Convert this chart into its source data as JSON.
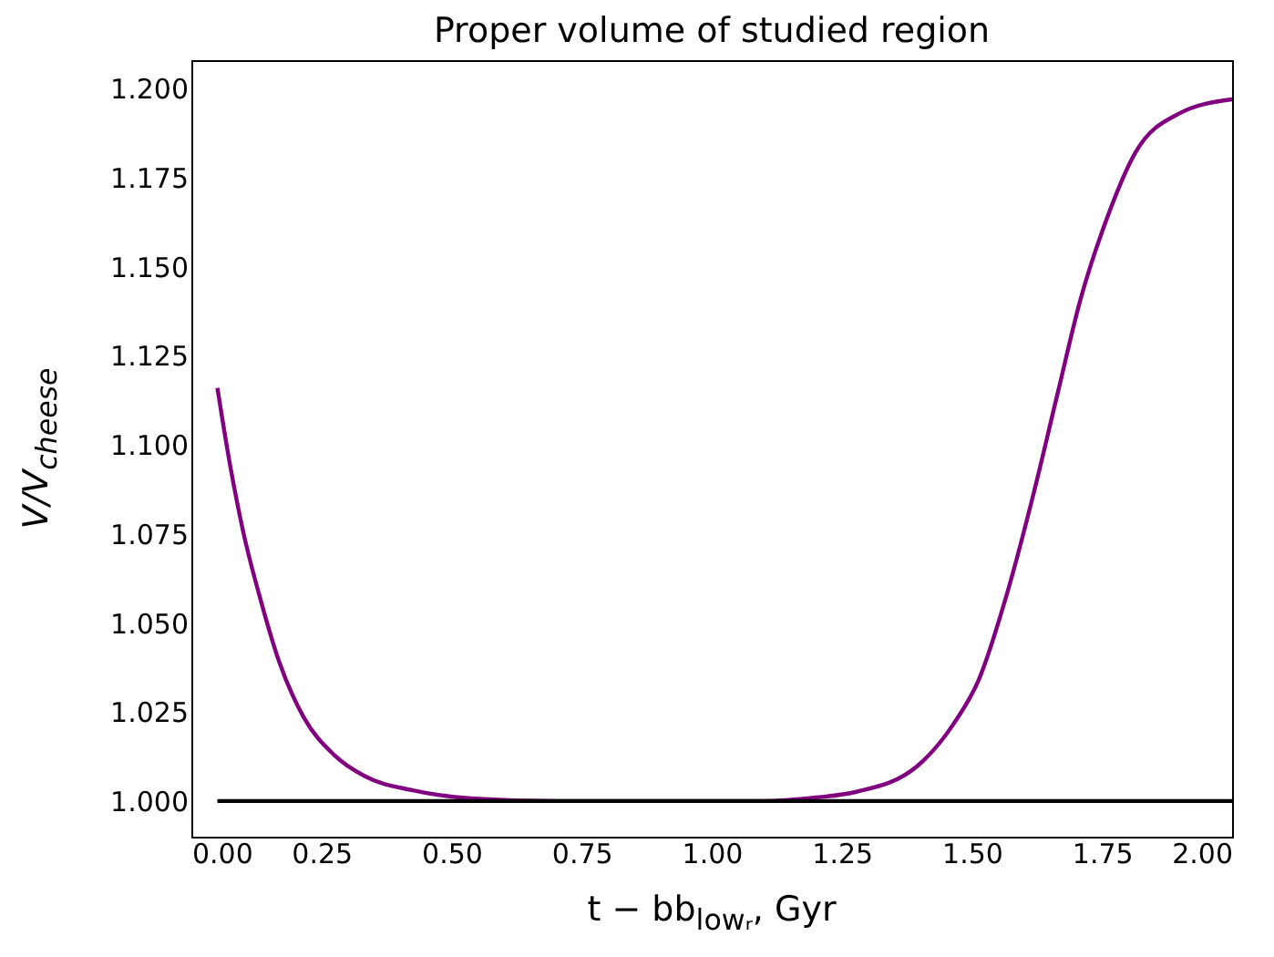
{
  "chart_data": {
    "type": "line",
    "title": "Proper volume of studied region",
    "xlabel": "t − bb$_{lowᵣ}$, Gyr",
    "ylabel": "V/V$_{cheese}$",
    "xlim": [
      0,
      2
    ],
    "ylim": [
      0.99,
      1.208
    ],
    "xticks": [
      {
        "value": 0,
        "label": "0.00"
      },
      {
        "value": 0.25,
        "label": "0.25"
      },
      {
        "value": 0.5,
        "label": "0.50"
      },
      {
        "value": 0.75,
        "label": "0.75"
      },
      {
        "value": 1,
        "label": "1.00"
      },
      {
        "value": 1.25,
        "label": "1.25"
      },
      {
        "value": 1.5,
        "label": "1.50"
      },
      {
        "value": 1.75,
        "label": "1.75"
      },
      {
        "value": 2,
        "label": "2.00"
      }
    ],
    "yticks": [
      {
        "value": 1,
        "label": "1.000"
      },
      {
        "value": 1.025,
        "label": "1.025"
      },
      {
        "value": 1.05,
        "label": "1.050"
      },
      {
        "value": 1.075,
        "label": "1.075"
      },
      {
        "value": 1.1,
        "label": "1.100"
      },
      {
        "value": 1.125,
        "label": "1.125"
      },
      {
        "value": 1.15,
        "label": "1.150"
      },
      {
        "value": 1.175,
        "label": "1.175"
      },
      {
        "value": 1.2,
        "label": "1.200"
      }
    ],
    "grid": false,
    "marker": "none",
    "line_style": "solid",
    "series": [
      {
        "color": "#800080",
        "x": [
          0.05,
          0.076,
          0.099,
          0.134,
          0.169,
          0.216,
          0.274,
          0.333,
          0.426,
          0.543,
          0.7,
          0.9,
          1.1,
          1.2,
          1.278,
          1.394,
          1.464,
          1.513,
          1.569,
          1.618,
          1.664,
          1.709,
          1.758,
          1.814,
          1.898,
          2.0
        ],
        "values": [
          1.116,
          1.093,
          1.076,
          1.056,
          1.039,
          1.0235,
          1.013,
          1.007,
          1.003,
          1.0007,
          1.0,
          1.0,
          1.0,
          1.001,
          1.0026,
          1.0097,
          1.0215,
          1.034,
          1.059,
          1.086,
          1.114,
          1.141,
          1.163,
          1.182,
          1.193,
          1.197
        ]
      },
      {
        "color": "#000000",
        "x": [
          0.05,
          2.0
        ],
        "values": [
          1.0,
          1.0
        ]
      }
    ]
  }
}
